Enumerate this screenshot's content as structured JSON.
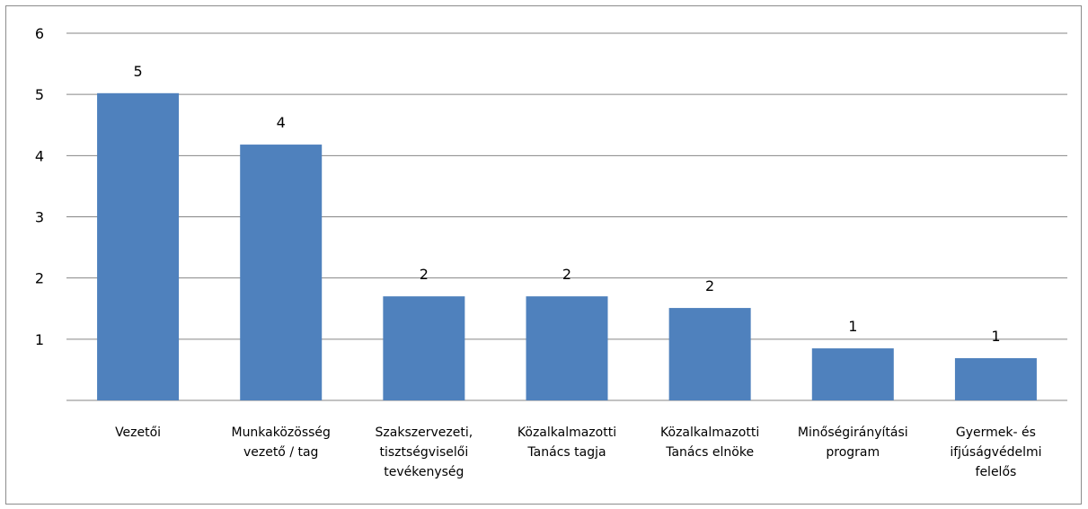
{
  "chart_data": {
    "type": "bar",
    "title": "",
    "xlabel": "",
    "ylabel": "",
    "ylim": [
      0,
      6
    ],
    "yticks": [
      1,
      2,
      3,
      4,
      5,
      6
    ],
    "grid": true,
    "legend": "none",
    "bar_color": "#4f81bd",
    "categories": [
      [
        "Vezetői"
      ],
      [
        "Munkaközösség",
        "vezető / tag"
      ],
      [
        "Szakszervezeti,",
        "tisztségviselői",
        "tevékenység"
      ],
      [
        "Közalkalmazotti",
        "Tanács tagja"
      ],
      [
        "Közalkalmazotti",
        "Tanács elnöke"
      ],
      [
        "Minőségirányítási",
        "program"
      ],
      [
        "Gyermek- és",
        "ifjúságvédelmi",
        "felelős"
      ]
    ],
    "values": [
      5.02,
      4.18,
      1.7,
      1.7,
      1.51,
      0.85,
      0.69
    ],
    "data_labels": [
      "5",
      "4",
      "2",
      "2",
      "2",
      "1",
      "1"
    ]
  }
}
